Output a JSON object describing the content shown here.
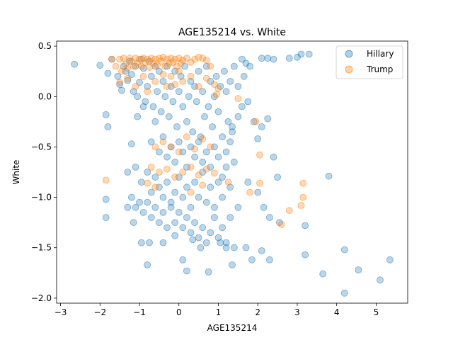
{
  "chart_data": {
    "type": "scatter",
    "title": "AGE135214 vs. White",
    "xlabel": "AGE135214",
    "ylabel": "White",
    "xlim": [
      -3.1,
      5.8
    ],
    "ylim": [
      -2.05,
      0.55
    ],
    "xticks": [
      -3,
      -2,
      -1,
      0,
      1,
      2,
      3,
      4,
      5
    ],
    "yticks": [
      -2.0,
      -1.5,
      -1.0,
      -0.5,
      0.0,
      0.5
    ],
    "xtick_labels": [
      "−3",
      "−2",
      "−1",
      "0",
      "1",
      "2",
      "3",
      "4",
      "5"
    ],
    "ytick_labels": [
      "−2.0",
      "−1.5",
      "−1.0",
      "−0.5",
      "0.0",
      "0.5"
    ],
    "grid": false,
    "legend_position": "top-right",
    "series": [
      {
        "name": "Hillary",
        "color": "#1f77b4",
        "points": [
          [
            -2.65,
            0.32
          ],
          [
            -2.0,
            0.31
          ],
          [
            -1.8,
            0.23
          ],
          [
            -1.7,
            0.37
          ],
          [
            -1.55,
            0.2
          ],
          [
            -1.5,
            0.12
          ],
          [
            -1.45,
            0.06
          ],
          [
            -1.4,
            0.3
          ],
          [
            -1.35,
            0.25
          ],
          [
            -1.3,
            0.16
          ],
          [
            -1.25,
            0.35
          ],
          [
            -1.2,
            0.22
          ],
          [
            -1.15,
            0.05
          ],
          [
            -1.1,
            0.3
          ],
          [
            -1.05,
            0.0
          ],
          [
            -1.0,
            0.14
          ],
          [
            -0.95,
            0.37
          ],
          [
            -0.9,
            0.28
          ],
          [
            -0.85,
            -0.05
          ],
          [
            -0.8,
            0.1
          ],
          [
            -0.75,
            0.35
          ],
          [
            -0.7,
            0.2
          ],
          [
            -0.65,
            -0.1
          ],
          [
            -0.6,
            0.3
          ],
          [
            -0.55,
            0.05
          ],
          [
            -0.5,
            0.25
          ],
          [
            -0.45,
            -0.15
          ],
          [
            -0.4,
            0.15
          ],
          [
            -0.35,
            0.0
          ],
          [
            -0.3,
            0.3
          ],
          [
            -0.25,
            -0.2
          ],
          [
            -0.2,
            0.1
          ],
          [
            -0.15,
            -0.05
          ],
          [
            -0.1,
            0.25
          ],
          [
            -0.05,
            -0.3
          ],
          [
            0.0,
            0.05
          ],
          [
            0.05,
            0.2
          ],
          [
            0.1,
            -0.1
          ],
          [
            0.15,
            0.3
          ],
          [
            0.2,
            -0.25
          ],
          [
            0.25,
            0.0
          ],
          [
            0.3,
            0.15
          ],
          [
            0.35,
            -0.35
          ],
          [
            0.4,
            0.1
          ],
          [
            0.45,
            -0.05
          ],
          [
            0.5,
            0.25
          ],
          [
            0.55,
            -0.4
          ],
          [
            0.6,
            0.05
          ],
          [
            0.65,
            -0.2
          ],
          [
            0.7,
            0.3
          ],
          [
            0.75,
            -0.1
          ],
          [
            0.8,
            0.15
          ],
          [
            0.85,
            -0.3
          ],
          [
            0.9,
            0.0
          ],
          [
            0.95,
            0.2
          ],
          [
            1.0,
            -0.15
          ],
          [
            1.05,
            0.1
          ],
          [
            1.1,
            -0.4
          ],
          [
            1.15,
            0.25
          ],
          [
            1.2,
            0.05
          ],
          [
            1.25,
            -0.25
          ],
          [
            1.3,
            0.15
          ],
          [
            1.35,
            -0.35
          ],
          [
            1.4,
            0.3
          ],
          [
            1.5,
            0.1
          ],
          [
            1.6,
            0.37
          ],
          [
            1.65,
            0.2
          ],
          [
            1.7,
            0.33
          ],
          [
            1.8,
            0.3
          ],
          [
            2.1,
            0.38
          ],
          [
            2.25,
            0.38
          ],
          [
            2.4,
            0.37
          ],
          [
            2.8,
            0.38
          ],
          [
            3.0,
            0.39
          ],
          [
            3.1,
            0.42
          ],
          [
            3.3,
            0.42
          ],
          [
            -1.85,
            -0.18
          ],
          [
            -1.8,
            -0.3
          ],
          [
            -1.2,
            -0.47
          ],
          [
            -1.05,
            -0.2
          ],
          [
            -0.9,
            -0.1
          ],
          [
            -0.7,
            -0.45
          ],
          [
            -0.6,
            -0.25
          ],
          [
            -0.5,
            -0.55
          ],
          [
            -0.4,
            -0.4
          ],
          [
            -0.3,
            -0.6
          ],
          [
            -0.2,
            -0.5
          ],
          [
            -0.1,
            -0.65
          ],
          [
            0.0,
            -0.45
          ],
          [
            0.1,
            -0.55
          ],
          [
            0.2,
            -0.7
          ],
          [
            0.3,
            -0.5
          ],
          [
            0.4,
            -0.6
          ],
          [
            0.5,
            -0.45
          ],
          [
            0.6,
            -0.65
          ],
          [
            0.7,
            -0.55
          ],
          [
            0.8,
            -0.7
          ],
          [
            0.9,
            -0.5
          ],
          [
            1.0,
            -0.6
          ],
          [
            1.1,
            -0.8
          ],
          [
            1.2,
            -0.55
          ],
          [
            1.3,
            -0.45
          ],
          [
            1.35,
            -0.3
          ],
          [
            1.4,
            -0.65
          ],
          [
            1.5,
            -0.2
          ],
          [
            1.6,
            -0.1
          ],
          [
            1.75,
            -0.05
          ],
          [
            1.9,
            -0.25
          ],
          [
            2.0,
            -0.42
          ],
          [
            2.1,
            -0.3
          ],
          [
            2.25,
            -0.22
          ],
          [
            2.4,
            -0.6
          ],
          [
            -1.3,
            -0.75
          ],
          [
            -1.1,
            -0.7
          ],
          [
            -0.95,
            -0.85
          ],
          [
            -0.8,
            -0.75
          ],
          [
            -0.7,
            -0.95
          ],
          [
            -0.6,
            -0.8
          ],
          [
            -0.5,
            -0.9
          ],
          [
            -0.4,
            -1.0
          ],
          [
            -0.3,
            -0.85
          ],
          [
            -0.2,
            -1.05
          ],
          [
            -0.1,
            -0.95
          ],
          [
            0.0,
            -0.8
          ],
          [
            0.1,
            -1.0
          ],
          [
            0.2,
            -0.9
          ],
          [
            0.3,
            -1.1
          ],
          [
            0.4,
            -0.85
          ],
          [
            0.5,
            -1.0
          ],
          [
            0.6,
            -0.75
          ],
          [
            0.7,
            -1.05
          ],
          [
            0.8,
            -0.9
          ],
          [
            0.9,
            -1.1
          ],
          [
            1.0,
            -0.85
          ],
          [
            1.1,
            -1.0
          ],
          [
            1.2,
            -0.7
          ],
          [
            1.3,
            -0.9
          ],
          [
            1.75,
            -0.85
          ],
          [
            2.0,
            -0.95
          ],
          [
            2.5,
            -0.8
          ],
          [
            3.8,
            -0.79
          ],
          [
            -1.85,
            -1.02
          ],
          [
            -1.85,
            -1.2
          ],
          [
            -1.2,
            -1.0
          ],
          [
            -1.1,
            -1.1
          ],
          [
            -1.0,
            -1.05
          ],
          [
            -0.9,
            -1.15
          ],
          [
            -0.8,
            -1.05
          ],
          [
            -0.7,
            -1.2
          ],
          [
            -0.6,
            -1.1
          ],
          [
            -0.5,
            -1.25
          ],
          [
            -0.4,
            -1.15
          ],
          [
            -0.3,
            -1.3
          ],
          [
            -0.2,
            -1.1
          ],
          [
            -0.1,
            -1.25
          ],
          [
            0.0,
            -1.15
          ],
          [
            0.1,
            -1.3
          ],
          [
            0.2,
            -1.2
          ],
          [
            0.3,
            -1.35
          ],
          [
            0.4,
            -1.25
          ],
          [
            0.5,
            -1.4
          ],
          [
            0.6,
            -1.3
          ],
          [
            0.7,
            -1.45
          ],
          [
            0.8,
            -1.35
          ],
          [
            0.9,
            -1.2
          ],
          [
            1.0,
            -1.4
          ],
          [
            1.1,
            -1.3
          ],
          [
            1.2,
            -1.45
          ],
          [
            1.3,
            -1.2
          ],
          [
            1.5,
            -1.1
          ],
          [
            2.15,
            -1.1
          ],
          [
            2.3,
            -1.2
          ],
          [
            2.55,
            -1.25
          ],
          [
            3.2,
            -1.28
          ],
          [
            -1.15,
            -1.25
          ],
          [
            -1.3,
            -1.1
          ],
          [
            -0.95,
            -1.45
          ],
          [
            -0.75,
            -1.45
          ],
          [
            -0.8,
            -1.67
          ],
          [
            -0.4,
            -1.45
          ],
          [
            -0.1,
            -1.38
          ],
          [
            0.1,
            -1.62
          ],
          [
            0.2,
            -1.73
          ],
          [
            0.35,
            -1.42
          ],
          [
            0.55,
            -1.5
          ],
          [
            0.75,
            -1.74
          ],
          [
            1.05,
            -1.45
          ],
          [
            1.2,
            -1.5
          ],
          [
            1.4,
            -1.5
          ],
          [
            1.35,
            -1.67
          ],
          [
            1.7,
            -1.5
          ],
          [
            1.85,
            -1.62
          ],
          [
            2.1,
            -1.53
          ],
          [
            2.3,
            -1.62
          ],
          [
            3.2,
            -1.57
          ],
          [
            3.65,
            -1.76
          ],
          [
            4.2,
            -1.52
          ],
          [
            4.55,
            -1.72
          ],
          [
            4.2,
            -1.95
          ],
          [
            5.1,
            -1.82
          ],
          [
            5.35,
            -1.62
          ]
        ]
      },
      {
        "name": "Trump",
        "color": "#ff7f0e",
        "points": [
          [
            -1.7,
            0.37
          ],
          [
            -1.6,
            0.3
          ],
          [
            -1.5,
            0.37
          ],
          [
            -1.45,
            0.25
          ],
          [
            -1.4,
            0.38
          ],
          [
            -1.35,
            0.32
          ],
          [
            -1.3,
            0.28
          ],
          [
            -1.25,
            0.38
          ],
          [
            -1.2,
            0.35
          ],
          [
            -1.15,
            0.3
          ],
          [
            -1.1,
            0.38
          ],
          [
            -1.05,
            0.33
          ],
          [
            -1.0,
            0.37
          ],
          [
            -0.95,
            0.3
          ],
          [
            -0.9,
            0.38
          ],
          [
            -0.85,
            0.34
          ],
          [
            -0.8,
            0.37
          ],
          [
            -0.75,
            0.29
          ],
          [
            -0.7,
            0.38
          ],
          [
            -0.65,
            0.33
          ],
          [
            -0.6,
            0.37
          ],
          [
            -0.55,
            0.31
          ],
          [
            -0.5,
            0.38
          ],
          [
            -0.45,
            0.35
          ],
          [
            -0.4,
            0.39
          ],
          [
            -0.35,
            0.3
          ],
          [
            -0.3,
            0.37
          ],
          [
            -0.25,
            0.33
          ],
          [
            -0.2,
            0.38
          ],
          [
            -0.15,
            0.34
          ],
          [
            -0.1,
            0.37
          ],
          [
            -0.05,
            0.3
          ],
          [
            0.0,
            0.38
          ],
          [
            0.05,
            0.33
          ],
          [
            0.1,
            0.36
          ],
          [
            0.2,
            0.38
          ],
          [
            0.3,
            0.34
          ],
          [
            0.4,
            0.37
          ],
          [
            0.5,
            0.39
          ],
          [
            0.6,
            0.38
          ],
          [
            0.7,
            0.36
          ],
          [
            0.8,
            0.3
          ],
          [
            -1.5,
            0.14
          ],
          [
            -1.3,
            0.18
          ],
          [
            -1.1,
            0.1
          ],
          [
            -0.9,
            0.2
          ],
          [
            -0.8,
            0.05
          ],
          [
            -0.6,
            0.15
          ],
          [
            -0.4,
            0.22
          ],
          [
            -0.3,
            0.1
          ],
          [
            -0.2,
            0.2
          ],
          [
            -0.1,
            0.12
          ],
          [
            0.0,
            0.25
          ],
          [
            0.1,
            0.15
          ],
          [
            0.3,
            0.2
          ],
          [
            0.5,
            0.1
          ],
          [
            0.7,
            0.18
          ],
          [
            0.9,
            0.12
          ],
          [
            0.95,
            0.02
          ],
          [
            1.0,
            0.08
          ],
          [
            1.5,
            -0.02
          ],
          [
            1.95,
            -0.25
          ],
          [
            -0.6,
            -0.5
          ],
          [
            -0.4,
            -0.45
          ],
          [
            -0.2,
            -0.5
          ],
          [
            0.0,
            -0.55
          ],
          [
            0.2,
            -0.4
          ],
          [
            0.4,
            -0.52
          ],
          [
            0.6,
            -0.42
          ],
          [
            0.8,
            -0.5
          ],
          [
            2.05,
            -0.58
          ],
          [
            -0.7,
            -0.7
          ],
          [
            -0.5,
            -0.75
          ],
          [
            -0.3,
            -0.72
          ],
          [
            -0.1,
            -0.8
          ],
          [
            0.1,
            -0.75
          ],
          [
            0.3,
            -0.7
          ],
          [
            0.5,
            -0.78
          ],
          [
            0.7,
            -0.72
          ],
          [
            0.9,
            -0.76
          ],
          [
            -1.85,
            -0.83
          ],
          [
            -0.8,
            -0.86
          ],
          [
            -0.6,
            -0.9
          ],
          [
            0.3,
            -0.95
          ],
          [
            0.6,
            -0.88
          ],
          [
            1.25,
            -0.85
          ],
          [
            1.8,
            -0.95
          ],
          [
            2.05,
            -0.86
          ],
          [
            3.15,
            -0.86
          ],
          [
            3.15,
            -1.0
          ],
          [
            3.1,
            -1.08
          ],
          [
            2.8,
            -1.13
          ],
          [
            2.6,
            -1.27
          ]
        ]
      }
    ]
  }
}
